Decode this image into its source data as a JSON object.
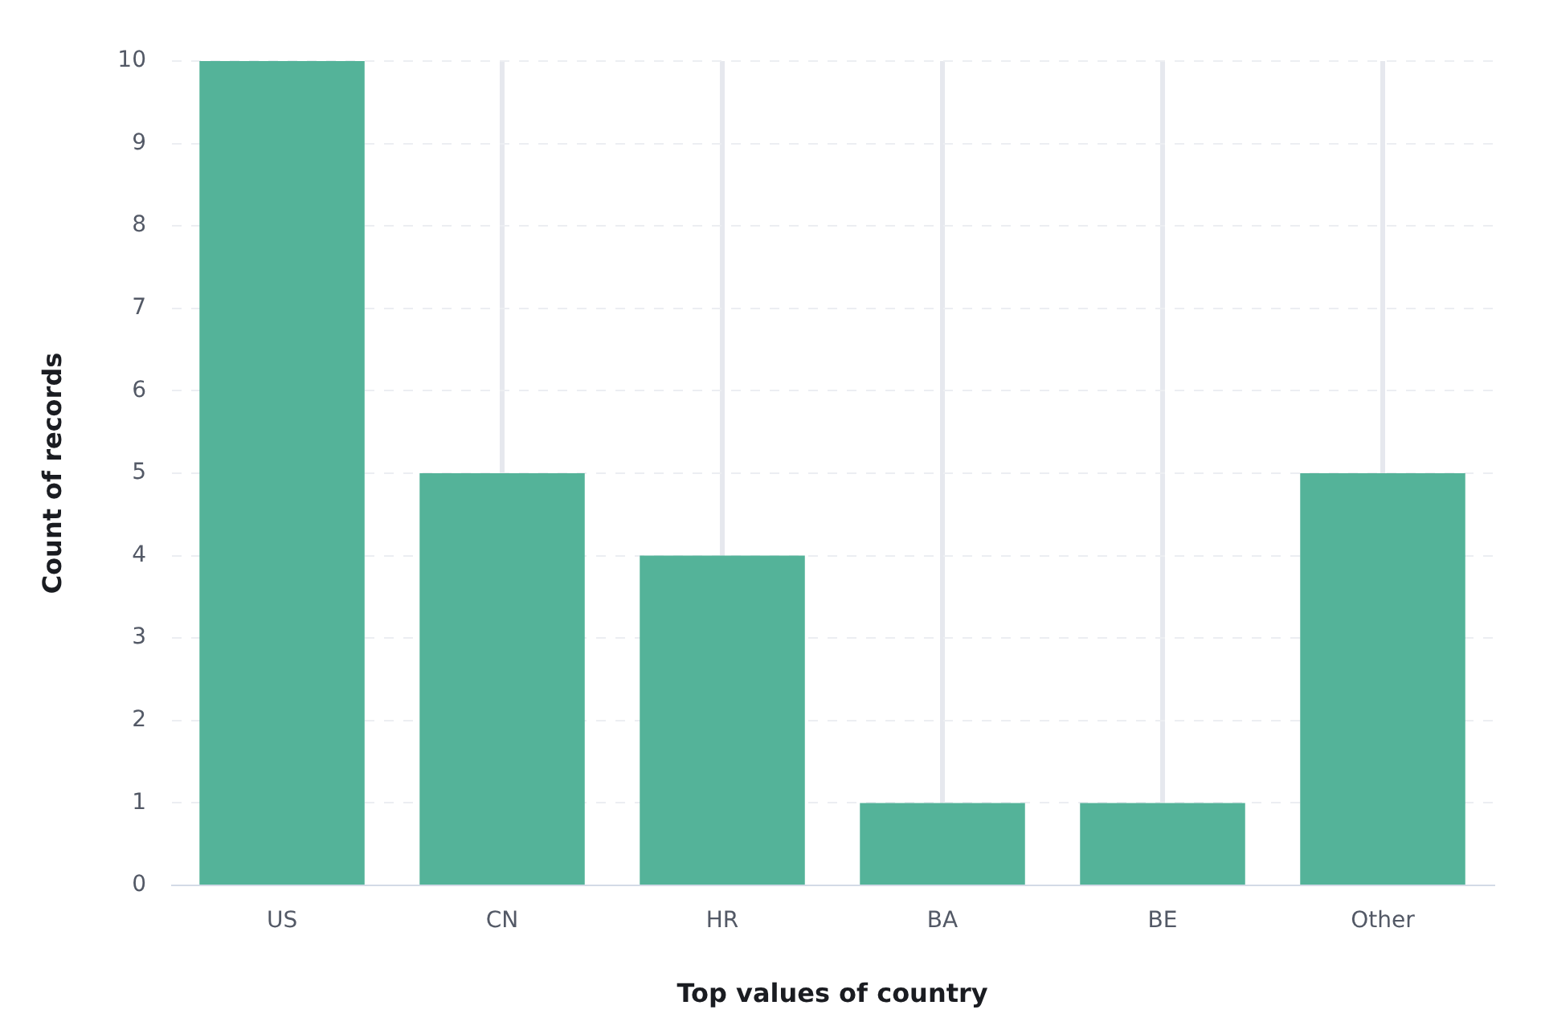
{
  "chart_data": {
    "type": "bar",
    "xlabel": "Top values of country",
    "ylabel": "Count of records",
    "categories": [
      "US",
      "CN",
      "HR",
      "BA",
      "BE",
      "Other"
    ],
    "values": [
      10,
      5,
      4,
      1,
      1,
      5
    ],
    "color": "#54b399",
    "ylim": [
      0,
      10
    ],
    "yticks": [
      0,
      1,
      2,
      3,
      4,
      5,
      6,
      7,
      8,
      9,
      10
    ],
    "grid": true,
    "legend": false
  }
}
